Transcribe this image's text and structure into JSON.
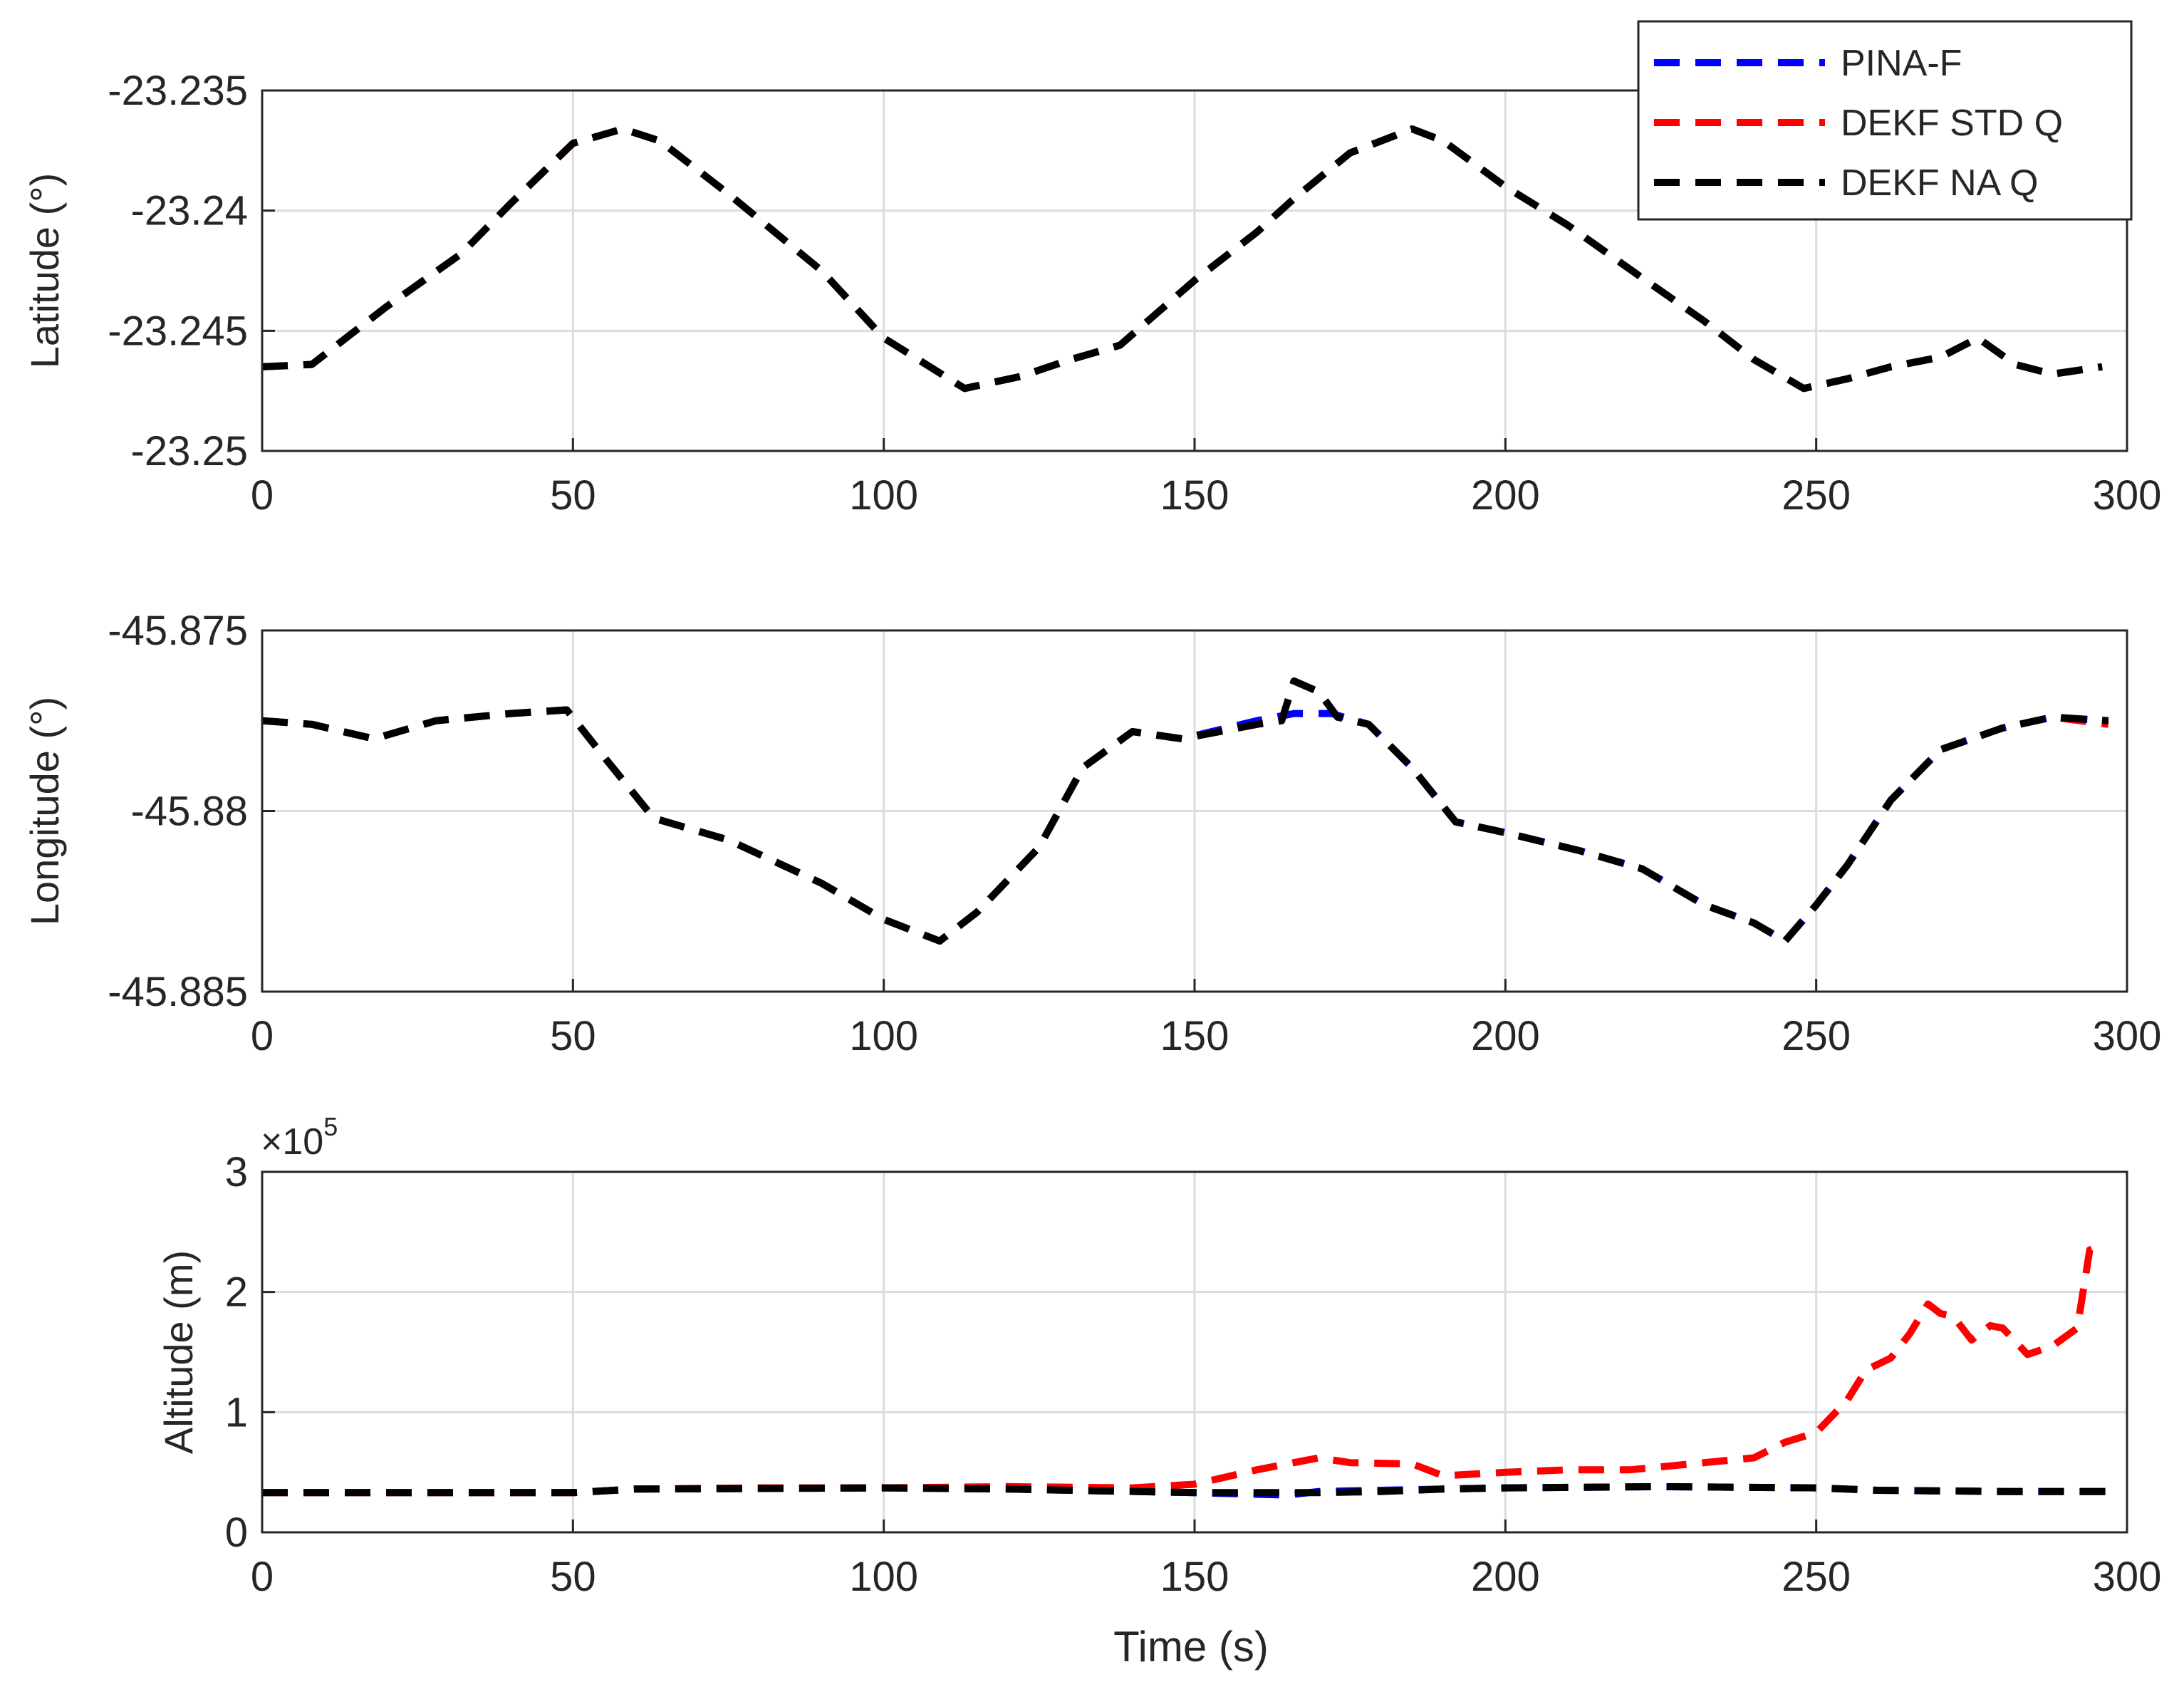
{
  "colors": {
    "pina": "#0000ff",
    "dekf_std": "#ff0000",
    "dekf_na": "#000000",
    "grid": "#dcdcdc",
    "axis": "#262626"
  },
  "legend": {
    "placement": "top-right",
    "entries": [
      {
        "label": "PINA-F",
        "series": "pina"
      },
      {
        "label": "DEKF STD Q",
        "series": "dekf_std"
      },
      {
        "label": "DEKF NA Q",
        "series": "dekf_na"
      }
    ]
  },
  "xlabel": "Time (s)",
  "chart_data": [
    {
      "type": "line",
      "ylabel": "Latitude (°)",
      "xlim": [
        0,
        300
      ],
      "ylim": [
        -23.25,
        -23.235
      ],
      "xticks": [
        0,
        50,
        100,
        150,
        200,
        250,
        300
      ],
      "xtick_labels": [
        "0",
        "50",
        "100",
        "150",
        "200",
        "250",
        "300"
      ],
      "yticks": [
        -23.25,
        -23.245,
        -23.24,
        -23.235
      ],
      "ytick_labels": [
        "-23.25",
        "-23.245",
        "-23.24",
        "-23.235"
      ],
      "grid": true,
      "series": [
        {
          "name": "PINA-F",
          "key": "pina",
          "x": [
            0,
            8,
            20,
            32,
            40,
            50,
            58,
            64,
            75,
            90,
            100,
            113,
            122,
            130,
            138,
            150,
            160,
            166,
            175,
            185,
            190,
            200,
            210,
            222,
            232,
            240,
            248,
            255,
            262,
            270,
            276,
            282,
            288,
            296
          ],
          "y": [
            -23.2465,
            -23.2464,
            -23.244,
            -23.2418,
            -23.2397,
            -23.2372,
            -23.2366,
            -23.2371,
            -23.2393,
            -23.2425,
            -23.2453,
            -23.2474,
            -23.2469,
            -23.2462,
            -23.2456,
            -23.2429,
            -23.2409,
            -23.2395,
            -23.2376,
            -23.2366,
            -23.2371,
            -23.239,
            -23.2406,
            -23.2428,
            -23.2446,
            -23.2462,
            -23.2474,
            -23.247,
            -23.2465,
            -23.2461,
            -23.2453,
            -23.2464,
            -23.2468,
            -23.2465
          ]
        },
        {
          "name": "DEKF STD Q",
          "key": "dekf_std",
          "x": [
            0,
            8,
            20,
            32,
            40,
            50,
            58,
            64,
            75,
            90,
            100,
            113,
            122,
            130,
            138,
            150,
            160,
            166,
            175,
            185,
            190,
            200,
            210,
            222,
            232,
            240,
            248,
            255,
            262,
            270,
            276,
            282,
            288,
            296
          ],
          "y": [
            -23.2465,
            -23.2464,
            -23.244,
            -23.2418,
            -23.2397,
            -23.2372,
            -23.2366,
            -23.2371,
            -23.2393,
            -23.2425,
            -23.2453,
            -23.2474,
            -23.2469,
            -23.2462,
            -23.2456,
            -23.2429,
            -23.2409,
            -23.2395,
            -23.2376,
            -23.2366,
            -23.2371,
            -23.239,
            -23.2406,
            -23.2428,
            -23.2446,
            -23.2462,
            -23.2474,
            -23.247,
            -23.2465,
            -23.2461,
            -23.2453,
            -23.2464,
            -23.2468,
            -23.2465
          ]
        },
        {
          "name": "DEKF NA Q",
          "key": "dekf_na",
          "x": [
            0,
            8,
            20,
            32,
            40,
            50,
            58,
            64,
            75,
            90,
            100,
            113,
            122,
            130,
            138,
            150,
            160,
            166,
            175,
            185,
            190,
            200,
            210,
            222,
            232,
            240,
            248,
            255,
            262,
            270,
            276,
            282,
            288,
            296
          ],
          "y": [
            -23.2465,
            -23.2464,
            -23.244,
            -23.2418,
            -23.2397,
            -23.2372,
            -23.2366,
            -23.2371,
            -23.2393,
            -23.2425,
            -23.2453,
            -23.2474,
            -23.2469,
            -23.2462,
            -23.2456,
            -23.2429,
            -23.2409,
            -23.2395,
            -23.2376,
            -23.2366,
            -23.2371,
            -23.239,
            -23.2406,
            -23.2428,
            -23.2446,
            -23.2462,
            -23.2474,
            -23.247,
            -23.2465,
            -23.2461,
            -23.2453,
            -23.2464,
            -23.2468,
            -23.2465
          ]
        }
      ]
    },
    {
      "type": "line",
      "ylabel": "Longitude (°)",
      "xlim": [
        0,
        300
      ],
      "ylim": [
        -45.885,
        -45.875
      ],
      "xticks": [
        0,
        50,
        100,
        150,
        200,
        250,
        300
      ],
      "xtick_labels": [
        "0",
        "50",
        "100",
        "150",
        "200",
        "250",
        "300"
      ],
      "yticks": [
        -45.885,
        -45.88,
        -45.875
      ],
      "ytick_labels": [
        "-45.885",
        "-45.88",
        "-45.875"
      ],
      "grid": true,
      "series": [
        {
          "name": "PINA-F",
          "key": "pina",
          "x": [
            0,
            8,
            18,
            28,
            40,
            49,
            55,
            63,
            75,
            90,
            100,
            109,
            115,
            125,
            132,
            140,
            148,
            160,
            166,
            172,
            178,
            185,
            192,
            200,
            212,
            222,
            232,
            240,
            245,
            250,
            255,
            262,
            270,
            280,
            288,
            297
          ],
          "y": [
            -45.8775,
            -45.8776,
            -45.878,
            -45.8775,
            -45.8773,
            -45.8772,
            -45.8785,
            -45.8802,
            -45.8808,
            -45.882,
            -45.883,
            -45.8836,
            -45.8828,
            -45.881,
            -45.8788,
            -45.8778,
            -45.878,
            -45.8775,
            -45.8773,
            -45.8773,
            -45.8776,
            -45.8788,
            -45.8803,
            -45.8806,
            -45.8811,
            -45.8816,
            -45.8826,
            -45.8831,
            -45.8836,
            -45.8826,
            -45.8815,
            -45.8797,
            -45.8783,
            -45.8777,
            -45.8774,
            -45.8775
          ]
        },
        {
          "name": "DEKF STD Q",
          "key": "dekf_std",
          "x": [
            0,
            8,
            18,
            28,
            40,
            49,
            55,
            63,
            75,
            90,
            100,
            109,
            115,
            125,
            132,
            140,
            148,
            160,
            164,
            166,
            170,
            173,
            178,
            185,
            192,
            200,
            212,
            222,
            232,
            240,
            245,
            250,
            255,
            262,
            270,
            280,
            288,
            297
          ],
          "y": [
            -45.8775,
            -45.8776,
            -45.878,
            -45.8775,
            -45.8773,
            -45.8772,
            -45.8785,
            -45.8802,
            -45.8808,
            -45.882,
            -45.883,
            -45.8836,
            -45.8828,
            -45.881,
            -45.8788,
            -45.8778,
            -45.878,
            -45.8776,
            -45.8775,
            -45.8764,
            -45.8767,
            -45.8774,
            -45.8776,
            -45.8788,
            -45.8803,
            -45.8806,
            -45.8811,
            -45.8816,
            -45.8826,
            -45.8831,
            -45.8836,
            -45.8826,
            -45.8815,
            -45.8797,
            -45.8783,
            -45.8777,
            -45.8774,
            -45.8776
          ]
        },
        {
          "name": "DEKF NA Q",
          "key": "dekf_na",
          "x": [
            0,
            8,
            18,
            28,
            40,
            49,
            55,
            63,
            75,
            90,
            100,
            109,
            115,
            125,
            132,
            140,
            148,
            160,
            164,
            166,
            170,
            173,
            178,
            185,
            192,
            200,
            212,
            222,
            232,
            240,
            245,
            250,
            255,
            262,
            270,
            280,
            288,
            297
          ],
          "y": [
            -45.8775,
            -45.8776,
            -45.878,
            -45.8775,
            -45.8773,
            -45.8772,
            -45.8785,
            -45.8802,
            -45.8808,
            -45.882,
            -45.883,
            -45.8836,
            -45.8828,
            -45.881,
            -45.8788,
            -45.8778,
            -45.878,
            -45.8776,
            -45.8775,
            -45.8764,
            -45.8767,
            -45.8774,
            -45.8776,
            -45.8788,
            -45.8803,
            -45.8806,
            -45.8811,
            -45.8816,
            -45.8826,
            -45.8831,
            -45.8836,
            -45.8826,
            -45.8815,
            -45.8797,
            -45.8783,
            -45.8777,
            -45.8774,
            -45.8775
          ]
        }
      ]
    },
    {
      "type": "line",
      "ylabel": "Altitude (m)",
      "exponent_label": "×10",
      "exponent_power": "5",
      "xlim": [
        0,
        300
      ],
      "ylim": [
        0,
        3
      ],
      "xticks": [
        0,
        50,
        100,
        150,
        200,
        250,
        300
      ],
      "xtick_labels": [
        "0",
        "50",
        "100",
        "150",
        "200",
        "250",
        "300"
      ],
      "yticks": [
        0,
        1,
        2,
        3
      ],
      "ytick_labels": [
        "0",
        "1",
        "2",
        "3"
      ],
      "grid": true,
      "series": [
        {
          "name": "PINA-F",
          "key": "pina",
          "x": [
            0,
            50,
            60,
            100,
            120,
            150,
            165,
            170,
            180,
            190,
            200,
            225,
            250,
            260,
            280,
            297
          ],
          "y": [
            0.33,
            0.33,
            0.36,
            0.37,
            0.36,
            0.33,
            0.31,
            0.34,
            0.35,
            0.36,
            0.37,
            0.38,
            0.37,
            0.35,
            0.34,
            0.34
          ]
        },
        {
          "name": "DEKF STD Q",
          "key": "dekf_std",
          "x": [
            0,
            50,
            60,
            80,
            100,
            120,
            140,
            150,
            160,
            170,
            175,
            185,
            190,
            200,
            210,
            220,
            230,
            240,
            245,
            250,
            255,
            258,
            262,
            265,
            268,
            270,
            272,
            275,
            278,
            280,
            284,
            288,
            292,
            294,
            296
          ],
          "y": [
            0.33,
            0.33,
            0.36,
            0.37,
            0.37,
            0.38,
            0.37,
            0.4,
            0.52,
            0.62,
            0.58,
            0.57,
            0.47,
            0.5,
            0.52,
            0.52,
            0.57,
            0.62,
            0.75,
            0.83,
            1.1,
            1.35,
            1.45,
            1.65,
            1.9,
            1.82,
            1.8,
            1.6,
            1.72,
            1.7,
            1.48,
            1.55,
            1.7,
            2.35,
            2.38
          ]
        },
        {
          "name": "DEKF NA Q",
          "key": "dekf_na",
          "x": [
            0,
            50,
            60,
            100,
            120,
            150,
            170,
            180,
            190,
            200,
            225,
            250,
            260,
            280,
            297
          ],
          "y": [
            0.33,
            0.33,
            0.36,
            0.37,
            0.36,
            0.33,
            0.33,
            0.34,
            0.36,
            0.37,
            0.38,
            0.37,
            0.35,
            0.34,
            0.34
          ]
        }
      ]
    }
  ]
}
